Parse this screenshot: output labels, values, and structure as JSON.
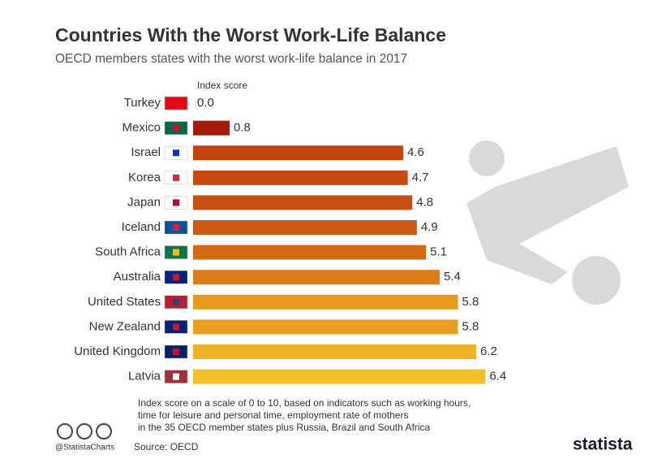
{
  "chart_data": {
    "type": "bar",
    "orientation": "horizontal",
    "title": "Countries With the Worst Work-Life Balance",
    "subtitle": "OECD members states with the worst work-life balance in 2017",
    "axis_label": "Index score",
    "categories": [
      "Turkey",
      "Mexico",
      "Israel",
      "Korea",
      "Japan",
      "Iceland",
      "South Africa",
      "Australia",
      "United States",
      "New Zealand",
      "United Kingdom",
      "Latvia"
    ],
    "values": [
      0,
      0.8,
      4.6,
      4.7,
      4.8,
      4.9,
      5.1,
      5.4,
      5.8,
      5.8,
      6.2,
      6.4
    ],
    "value_labels": [
      "0.0",
      "0.8",
      "4.6",
      "4.7",
      "4.8",
      "4.9",
      "5.1",
      "5.4",
      "5.8",
      "5.8",
      "6.2",
      "6.4"
    ],
    "colors": [
      "#a51c0b",
      "#a51c0b",
      "#c2430f",
      "#c64a10",
      "#c95012",
      "#cd5713",
      "#d56a14",
      "#dc7d18",
      "#e69a1f",
      "#e89f21",
      "#efb426",
      "#f3c02a"
    ],
    "note": [
      "Index score on a scale of 0 to 10, based on indicators such as working hours,",
      "time for leisure and personal time, employment rate of mothers",
      "in the 35 OECD member states plus Russia, Brazil and South Africa"
    ],
    "handle": "@StatistaCharts",
    "source": "Source: OECD",
    "brand": "statista"
  }
}
